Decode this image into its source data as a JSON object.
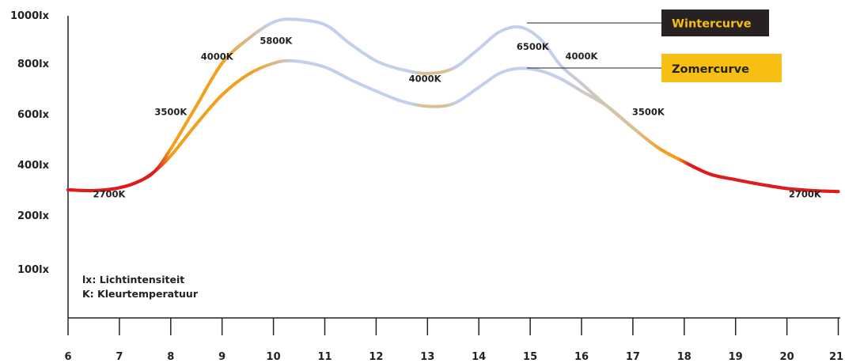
{
  "chart_data": {
    "type": "line",
    "xticks": [
      6,
      7,
      8,
      9,
      10,
      11,
      12,
      13,
      14,
      15,
      16,
      17,
      18,
      19,
      20,
      21
    ],
    "yticks": [
      {
        "value": 100,
        "label": "100lx"
      },
      {
        "value": 200,
        "label": "200lx"
      },
      {
        "value": 400,
        "label": "400lx"
      },
      {
        "value": 600,
        "label": "600lx"
      },
      {
        "value": 800,
        "label": "800lx"
      },
      {
        "value": 1000,
        "label": "1000lx"
      }
    ],
    "series": [
      {
        "name": "Wintercurve",
        "x": [
          6,
          6.5,
          7,
          7.4,
          7.7,
          8,
          8.5,
          9,
          9.5,
          10,
          10.4,
          11,
          11.5,
          12,
          12.5,
          13,
          13.5,
          14,
          14.4,
          14.8,
          15.2,
          15.6,
          16,
          16.5,
          17,
          17.5,
          18,
          18.5,
          19,
          19.5,
          20,
          20.5,
          21
        ],
        "y": [
          300,
          297,
          308,
          335,
          375,
          462,
          632,
          800,
          900,
          970,
          982,
          960,
          880,
          810,
          775,
          760,
          780,
          860,
          930,
          950,
          900,
          790,
          720,
          630,
          545,
          465,
          410,
          362,
          340,
          321,
          305,
          297,
          293
        ]
      },
      {
        "name": "Zomercurve",
        "x": [
          6,
          6.5,
          7,
          7.4,
          7.7,
          8,
          8.5,
          9,
          9.5,
          10,
          10.4,
          11,
          11.5,
          12,
          12.5,
          13,
          13.5,
          14,
          14.4,
          14.8,
          15.2,
          15.6,
          16,
          16.5,
          17,
          17.5,
          18,
          18.5,
          19,
          19.5,
          20,
          20.5,
          21
        ],
        "y": [
          300,
          297,
          308,
          335,
          375,
          434,
          560,
          675,
          755,
          800,
          810,
          785,
          735,
          690,
          650,
          630,
          640,
          705,
          760,
          780,
          770,
          738,
          690,
          630,
          545,
          465,
          410,
          362,
          340,
          321,
          305,
          297,
          293
        ]
      }
    ],
    "colors": {
      "warm_red": "#e01b1b",
      "orange": "#f2a01b",
      "cool_blue": "#c3cfec",
      "mid_gold": "#d9c090",
      "axis": "#222222",
      "winter_legend_bg": "#272221",
      "winter_legend_text": "#f7bf14",
      "summer_legend_bg": "#f7bf14",
      "summer_legend_text": "#222222"
    },
    "temperature_labels": [
      {
        "text": "2700K",
        "x": 6.8,
        "y": 270
      },
      {
        "text": "3500K",
        "x": 8.0,
        "y": 595
      },
      {
        "text": "4000K",
        "x": 8.9,
        "y": 814
      },
      {
        "text": "5800K",
        "x": 10.05,
        "y": 880
      },
      {
        "text": "4000K",
        "x": 12.95,
        "y": 727
      },
      {
        "text": "6500K",
        "x": 15.05,
        "y": 856
      },
      {
        "text": "4000K",
        "x": 16.0,
        "y": 816
      },
      {
        "text": "3500K",
        "x": 17.3,
        "y": 595
      },
      {
        "text": "2700K",
        "x": 20.35,
        "y": 270
      }
    ],
    "legend": [
      {
        "text": "Wintercurve",
        "series": "Wintercurve"
      },
      {
        "text": "Zomercurve",
        "series": "Zomercurve"
      }
    ],
    "notes": [
      "lx: Lichtintensiteit",
      "K: Kleurtemperatuur"
    ]
  }
}
